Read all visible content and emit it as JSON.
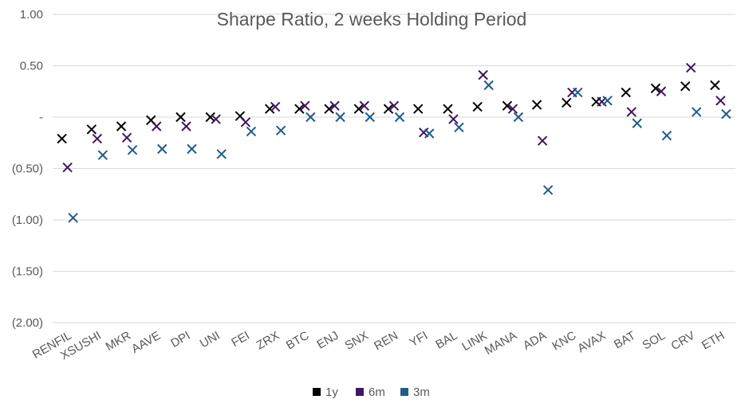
{
  "chart_data": {
    "type": "scatter",
    "title": "Sharpe Ratio, 2 weeks Holding Period",
    "xlabel": "",
    "ylabel": "",
    "ylim": [
      -2.0,
      1.0
    ],
    "yticks": [
      1.0,
      0.5,
      0.0,
      -0.5,
      -1.0,
      -1.5,
      -2.0
    ],
    "ytick_labels": [
      "1.00",
      "0.50",
      "-",
      "(0.50)",
      "(1.00)",
      "(1.50)",
      "(2.00)"
    ],
    "grid": true,
    "legend_position": "bottom",
    "marker": "x",
    "categories": [
      "RENFIL",
      "XSUSHI",
      "MKR",
      "AAVE",
      "DPI",
      "UNI",
      "FEI",
      "ZRX",
      "BTC",
      "ENJ",
      "SNX",
      "REN",
      "YFI",
      "BAL",
      "LINK",
      "MANA",
      "ADA",
      "KNC",
      "AVAX",
      "BAT",
      "SOL",
      "CRV",
      "ETH"
    ],
    "series": [
      {
        "name": "1y",
        "color": "#000000",
        "values": [
          -0.21,
          -0.12,
          -0.09,
          -0.03,
          0.0,
          0.0,
          0.01,
          0.08,
          0.08,
          0.08,
          0.08,
          0.08,
          0.08,
          0.08,
          0.1,
          0.11,
          0.12,
          0.14,
          0.15,
          0.24,
          0.28,
          0.3,
          0.31
        ]
      },
      {
        "name": "6m",
        "color": "#3f1663",
        "values": [
          -0.49,
          -0.21,
          -0.2,
          -0.09,
          -0.09,
          -0.02,
          -0.05,
          0.1,
          0.11,
          0.11,
          0.11,
          0.11,
          -0.15,
          -0.02,
          0.41,
          0.08,
          -0.23,
          0.24,
          0.15,
          0.05,
          0.25,
          0.48,
          0.16
        ]
      },
      {
        "name": "3m",
        "color": "#1f5c8c",
        "values": [
          -0.98,
          -0.37,
          -0.32,
          -0.31,
          -0.31,
          -0.36,
          -0.14,
          -0.13,
          0.0,
          0.0,
          0.0,
          0.0,
          -0.16,
          -0.1,
          0.31,
          0.0,
          -0.71,
          0.24,
          0.16,
          -0.06,
          -0.18,
          0.05,
          0.03
        ]
      }
    ]
  }
}
